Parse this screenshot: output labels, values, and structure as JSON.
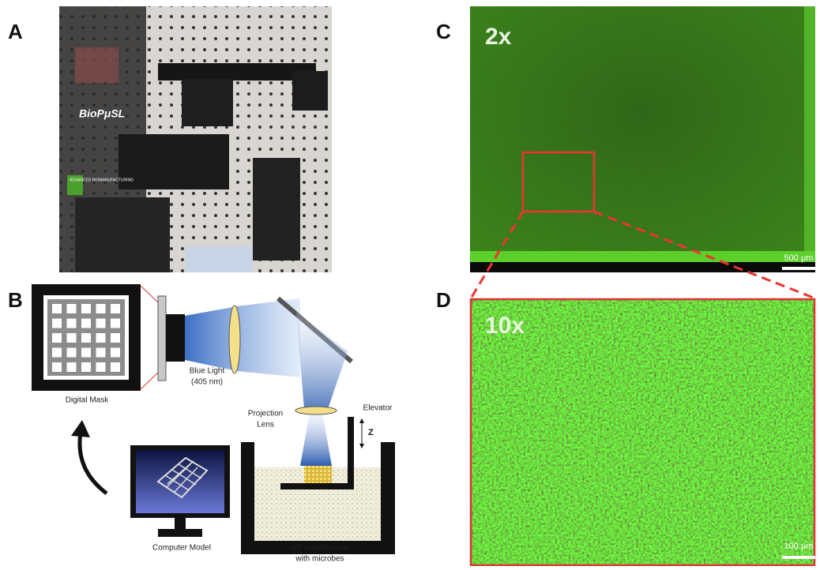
{
  "panels": {
    "a": {
      "label": "A",
      "photo_text": [
        "BioPμSL",
        "ADVANCED BIOMANUFACTURING"
      ]
    },
    "b": {
      "label": "B",
      "digital_mask": "Digital Mask",
      "blue_light": [
        "Blue Light",
        "(405 nm)"
      ],
      "projection_lens": [
        "Projection",
        "Lens"
      ],
      "elevator": "Elevator",
      "z_axis": "Z",
      "computer_model": "Computer Model",
      "resin": [
        "UV curable resin",
        "with microbes"
      ]
    },
    "c": {
      "label": "C",
      "magnification": "2x",
      "scale_bar": "500 μm"
    },
    "d": {
      "label": "D",
      "magnification": "10x",
      "scale_bar": "100 μm"
    }
  }
}
